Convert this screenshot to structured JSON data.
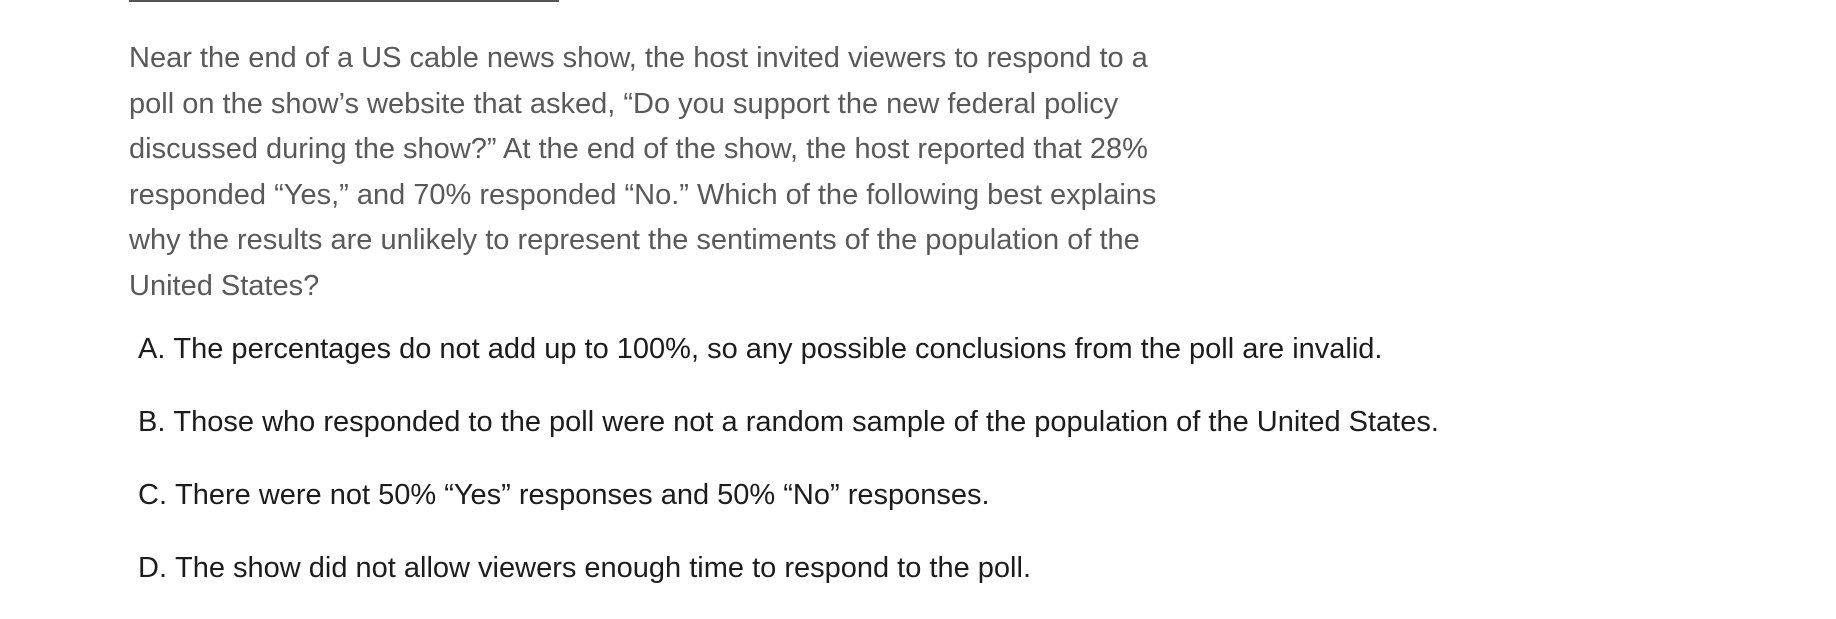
{
  "question": {
    "text": "Near the end of a US cable news show, the host invited viewers to respond to a poll on the show’s website that asked, “Do you support the new federal policy discussed during the show?” At the end of the show, the host reported that 28% responded “Yes,” and 70% responded “No.” Which of the following best explains why the results are unlikely to represent the sentiments of the population of the United States?"
  },
  "choices": [
    {
      "letter": "A.",
      "text": "The percentages do not add up to 100%, so any possible conclusions from the poll are invalid."
    },
    {
      "letter": "B.",
      "text": "Those who responded to the poll were not a random sample of the population of the United States."
    },
    {
      "letter": "C.",
      "text": "There were not 50% “Yes” responses and 50% “No” responses."
    },
    {
      "letter": "D.",
      "text": "The show did not allow viewers enough time to respond to the poll."
    }
  ]
}
